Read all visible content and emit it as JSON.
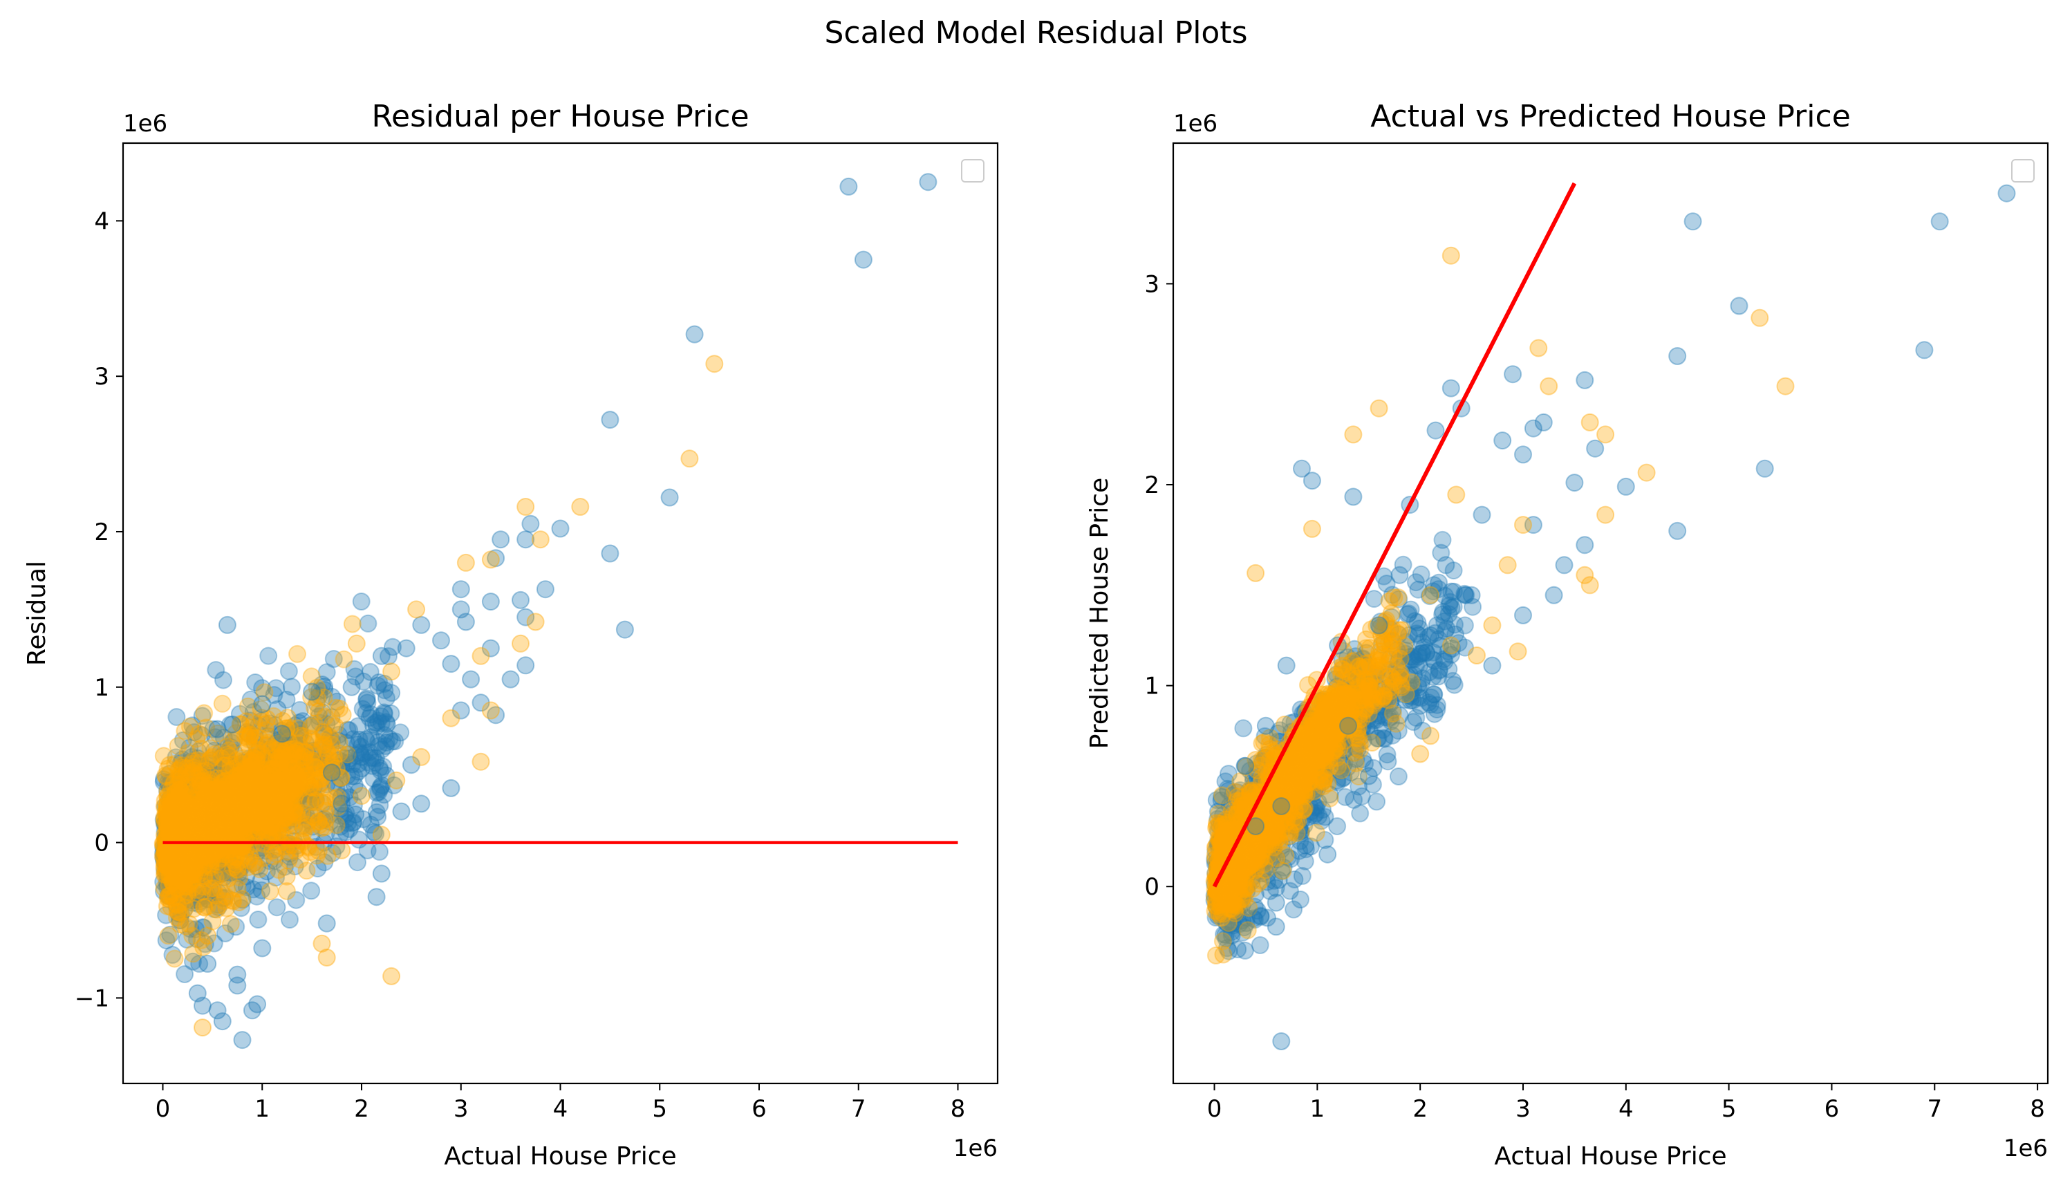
{
  "figure": {
    "suptitle": "Scaled Model Residual Plots"
  },
  "colors": {
    "train": "#1f77b4",
    "test": "#ffa500",
    "reference_line": "#ff0000"
  },
  "chart_data": [
    {
      "type": "scatter",
      "title": "Residual per House Price",
      "xlabel": "Actual House Price",
      "ylabel": "Residual",
      "x_offset_label": "1e6",
      "y_offset_label": "1e6",
      "xlim": [
        -0.4,
        8.4
      ],
      "ylim": [
        -1.55,
        4.5
      ],
      "xticks": [
        0,
        1,
        2,
        3,
        4,
        5,
        6,
        7,
        8
      ],
      "xtick_labels": [
        "0",
        "1",
        "2",
        "3",
        "4",
        "5",
        "6",
        "7",
        "8"
      ],
      "yticks": [
        -1,
        0,
        1,
        2,
        3,
        4
      ],
      "ytick_labels": [
        "−1",
        "0",
        "1",
        "2",
        "3",
        "4"
      ],
      "legend": "top-right (empty)",
      "reference_line": {
        "x": [
          0,
          8
        ],
        "y": [
          0,
          0
        ]
      },
      "series": [
        {
          "points": [
            [
              0.65,
              1.4
            ],
            [
              6.9,
              4.22
            ],
            [
              7.7,
              4.25
            ],
            [
              7.05,
              3.75
            ],
            [
              5.35,
              3.27
            ],
            [
              4.5,
              2.72
            ],
            [
              5.1,
              2.22
            ],
            [
              4.65,
              1.37
            ],
            [
              4.5,
              1.86
            ],
            [
              3.7,
              2.05
            ],
            [
              3.65,
              1.95
            ],
            [
              4.0,
              2.02
            ],
            [
              3.85,
              1.63
            ],
            [
              3.65,
              1.45
            ],
            [
              3.6,
              1.56
            ],
            [
              3.65,
              1.14
            ],
            [
              3.4,
              1.95
            ],
            [
              3.35,
              1.83
            ],
            [
              3.0,
              1.63
            ],
            [
              3.05,
              1.42
            ],
            [
              3.3,
              1.25
            ],
            [
              3.1,
              1.05
            ],
            [
              3.35,
              0.82
            ],
            [
              3.0,
              0.85
            ],
            [
              2.9,
              0.35
            ],
            [
              2.6,
              0.25
            ],
            [
              2.2,
              -0.2
            ],
            [
              2.15,
              -0.35
            ],
            [
              1.65,
              -0.52
            ],
            [
              1.0,
              -0.68
            ],
            [
              0.95,
              -1.04
            ],
            [
              0.9,
              -1.08
            ],
            [
              0.8,
              -1.27
            ],
            [
              0.35,
              -0.97
            ],
            [
              0.4,
              -1.05
            ],
            [
              0.55,
              -1.08
            ],
            [
              0.6,
              -1.15
            ],
            [
              0.75,
              -0.92
            ],
            [
              0.75,
              -0.85
            ],
            [
              0.45,
              -0.78
            ],
            [
              0.55,
              0.73
            ],
            [
              0.7,
              0.76
            ],
            [
              1.0,
              0.89
            ],
            [
              1.5,
              0.97
            ],
            [
              1.9,
              1.0
            ],
            [
              2.2,
              1.2
            ],
            [
              2.45,
              1.25
            ],
            [
              2.6,
              1.4
            ],
            [
              2.8,
              1.3
            ],
            [
              3.0,
              1.5
            ],
            [
              2.5,
              0.5
            ],
            [
              2.4,
              0.2
            ],
            [
              1.8,
              0.25
            ],
            [
              1.2,
              0.7
            ],
            [
              2.9,
              1.15
            ],
            [
              2.0,
              0.55
            ],
            [
              1.7,
              0.45
            ],
            [
              3.2,
              0.9
            ],
            [
              3.5,
              1.05
            ],
            [
              3.3,
              1.55
            ]
          ]
        },
        {
          "points": [
            [
              5.55,
              3.08
            ],
            [
              5.3,
              2.47
            ],
            [
              3.65,
              2.16
            ],
            [
              4.2,
              2.16
            ],
            [
              3.8,
              1.95
            ],
            [
              3.75,
              1.42
            ],
            [
              3.6,
              1.28
            ],
            [
              3.3,
              1.82
            ],
            [
              3.2,
              1.2
            ],
            [
              2.55,
              1.5
            ],
            [
              2.3,
              1.1
            ],
            [
              1.95,
              1.28
            ],
            [
              3.3,
              0.85
            ],
            [
              3.2,
              0.52
            ],
            [
              2.35,
              0.4
            ],
            [
              2.3,
              -0.86
            ],
            [
              1.6,
              -0.65
            ],
            [
              1.65,
              -0.74
            ],
            [
              0.4,
              -1.19
            ],
            [
              0.45,
              -0.6
            ],
            [
              0.5,
              0.55
            ],
            [
              0.3,
              0.45
            ],
            [
              2.9,
              0.8
            ],
            [
              2.6,
              0.55
            ],
            [
              2.0,
              0.3
            ],
            [
              2.2,
              0.05
            ],
            [
              1.8,
              -0.05
            ],
            [
              1.3,
              0.6
            ],
            [
              3.05,
              1.8
            ],
            [
              1.0,
              0.35
            ]
          ]
        }
      ],
      "cluster_train_a": {
        "start": [
          0.02,
          -0.05
        ],
        "end": [
          1.4,
          0.42
        ],
        "spread": 0.17
      },
      "cluster_train_b": {
        "start": [
          0.1,
          0.0
        ],
        "end": [
          2.3,
          0.65
        ],
        "spread": 0.33
      },
      "cluster_test_a": {
        "start": [
          0.02,
          0.0
        ],
        "end": [
          1.35,
          0.35
        ],
        "spread": 0.15
      },
      "cluster_test_b": {
        "start": [
          0.05,
          0.0
        ],
        "end": [
          1.8,
          0.5
        ],
        "spread": 0.28
      }
    },
    {
      "type": "scatter",
      "title": "Actual vs Predicted House Price",
      "xlabel": "Actual House Price",
      "ylabel": "Predicted House Price",
      "x_offset_label": "1e6",
      "y_offset_label": "1e6",
      "xlim": [
        -0.4,
        8.1
      ],
      "ylim": [
        -0.98,
        3.7
      ],
      "xticks": [
        0,
        1,
        2,
        3,
        4,
        5,
        6,
        7,
        8
      ],
      "xtick_labels": [
        "0",
        "1",
        "2",
        "3",
        "4",
        "5",
        "6",
        "7",
        "8"
      ],
      "yticks": [
        0,
        1,
        2,
        3
      ],
      "ytick_labels": [
        "0",
        "1",
        "2",
        "3"
      ],
      "legend": "top-right (empty)",
      "reference_line": {
        "x": [
          0,
          3.5
        ],
        "y": [
          0,
          3.5
        ]
      },
      "series": [
        {
          "points": [
            [
              7.7,
              3.45
            ],
            [
              7.05,
              3.31
            ],
            [
              6.9,
              2.67
            ],
            [
              4.65,
              3.31
            ],
            [
              5.1,
              2.89
            ],
            [
              5.35,
              2.08
            ],
            [
              4.5,
              2.64
            ],
            [
              4.5,
              1.77
            ],
            [
              4.0,
              1.99
            ],
            [
              3.6,
              2.52
            ],
            [
              3.7,
              2.18
            ],
            [
              3.6,
              1.7
            ],
            [
              3.5,
              2.01
            ],
            [
              3.2,
              2.31
            ],
            [
              3.1,
              2.28
            ],
            [
              3.0,
              2.15
            ],
            [
              2.9,
              2.55
            ],
            [
              2.8,
              2.22
            ],
            [
              2.4,
              2.38
            ],
            [
              2.3,
              2.48
            ],
            [
              2.15,
              2.27
            ],
            [
              1.35,
              1.94
            ],
            [
              0.85,
              2.08
            ],
            [
              0.95,
              2.02
            ],
            [
              0.65,
              0.4
            ],
            [
              0.6,
              -0.08
            ],
            [
              0.6,
              -0.2
            ],
            [
              0.65,
              -0.77
            ],
            [
              0.45,
              -0.15
            ],
            [
              1.1,
              0.16
            ],
            [
              1.3,
              0.8
            ],
            [
              1.5,
              0.55
            ],
            [
              2.0,
              0.9
            ],
            [
              2.1,
              1.25
            ],
            [
              2.5,
              1.45
            ],
            [
              2.7,
              1.1
            ],
            [
              3.0,
              1.35
            ],
            [
              3.3,
              1.45
            ],
            [
              3.4,
              1.6
            ],
            [
              3.1,
              1.8
            ],
            [
              2.6,
              1.85
            ],
            [
              1.8,
              1.55
            ],
            [
              1.6,
              1.3
            ],
            [
              1.2,
              1.2
            ],
            [
              0.7,
              1.1
            ],
            [
              0.5,
              0.8
            ],
            [
              0.3,
              0.6
            ],
            [
              0.4,
              0.3
            ],
            [
              1.9,
              1.9
            ],
            [
              2.25,
              1.6
            ]
          ]
        },
        {
          "points": [
            [
              2.3,
              3.14
            ],
            [
              3.15,
              2.68
            ],
            [
              5.3,
              2.83
            ],
            [
              5.55,
              2.49
            ],
            [
              3.25,
              2.49
            ],
            [
              3.65,
              2.31
            ],
            [
              3.8,
              2.25
            ],
            [
              4.2,
              2.06
            ],
            [
              3.8,
              1.85
            ],
            [
              3.6,
              1.55
            ],
            [
              3.65,
              1.5
            ],
            [
              2.95,
              1.17
            ],
            [
              2.55,
              1.15
            ],
            [
              2.1,
              0.75
            ],
            [
              2.0,
              0.66
            ],
            [
              1.6,
              2.38
            ],
            [
              1.35,
              2.25
            ],
            [
              0.95,
              1.78
            ],
            [
              0.4,
              1.56
            ],
            [
              2.35,
              1.95
            ],
            [
              3.0,
              1.8
            ],
            [
              2.85,
              1.6
            ],
            [
              2.1,
              1.45
            ],
            [
              2.7,
              1.3
            ],
            [
              1.6,
              1.1
            ],
            [
              1.2,
              0.9
            ],
            [
              1.8,
              1.05
            ],
            [
              2.3,
              1.2
            ]
          ]
        }
      ],
      "cluster_train_a": {
        "start": [
          0.05,
          0.02
        ],
        "end": [
          1.4,
          1.0
        ],
        "spread": 0.1
      },
      "cluster_train_b": {
        "start": [
          0.1,
          0.05
        ],
        "end": [
          2.4,
          1.4
        ],
        "spread": 0.2
      },
      "cluster_test_a": {
        "start": [
          0.05,
          0.02
        ],
        "end": [
          1.3,
          0.95
        ],
        "spread": 0.08
      },
      "cluster_test_b": {
        "start": [
          0.05,
          0.05
        ],
        "end": [
          1.8,
          1.2
        ],
        "spread": 0.15
      }
    }
  ]
}
